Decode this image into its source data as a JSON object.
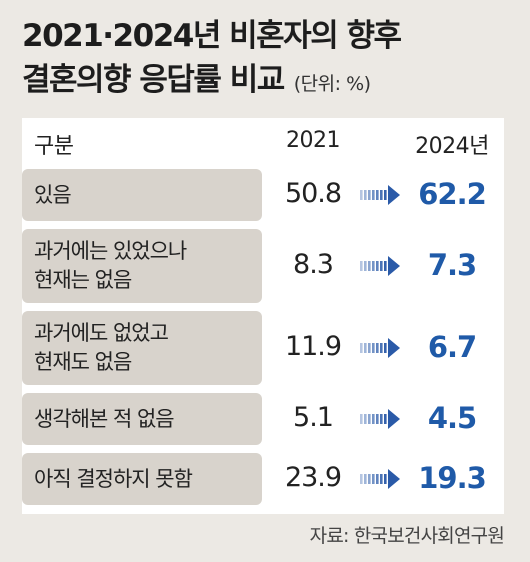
{
  "title": {
    "line1": "2021·2024년 비혼자의 향후",
    "line2": "결혼의향 응답률 비교",
    "unit": "(단위: %)"
  },
  "header": {
    "category": "구분",
    "col2021": "2021",
    "col2024": "2024년"
  },
  "source": "자료: 한국보건사회연구원",
  "colors": {
    "background": "#ece9e4",
    "category_fill": "#d8d3cc",
    "value_2024": "#1f5aa8",
    "arrow": "#2a5aa8"
  },
  "chart_data": {
    "type": "table",
    "columns": [
      "구분",
      "2021",
      "2024년"
    ],
    "rows": [
      {
        "label": [
          "있음"
        ],
        "v2021": "50.8",
        "v2024": "62.2"
      },
      {
        "label": [
          "과거에는 있었으나",
          "현재는 없음"
        ],
        "v2021": "8.3",
        "v2024": "7.3"
      },
      {
        "label": [
          "과거에도 없었고",
          "현재도 없음"
        ],
        "v2021": "11.9",
        "v2024": "6.7"
      },
      {
        "label": [
          "생각해본 적 없음"
        ],
        "v2021": "5.1",
        "v2024": "4.5"
      },
      {
        "label": [
          "아직 결정하지 못함"
        ],
        "v2021": "23.9",
        "v2024": "19.3"
      }
    ]
  }
}
